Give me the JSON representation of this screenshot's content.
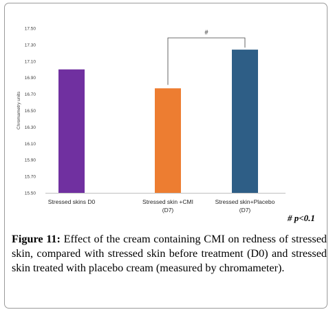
{
  "chart_data": {
    "type": "bar",
    "categories": [
      [
        "Stressed skins D0"
      ],
      [
        "Stressed skin +CMI",
        "(D7)"
      ],
      [
        "Stressed skin+Placebo",
        "(D7)"
      ]
    ],
    "values": [
      17.0,
      16.77,
      17.24
    ],
    "colors": [
      "#7030a0",
      "#ed7d31",
      "#2e5e86"
    ],
    "ylabel": "Chromametry units",
    "ylim": [
      15.5,
      17.5
    ],
    "yticks": [
      "15.50",
      "15.70",
      "15.90",
      "16.10",
      "16.30",
      "16.50",
      "16.70",
      "16.90",
      "17.10",
      "17.30",
      "17.50"
    ],
    "grid": false,
    "annotation": {
      "symbol": "#",
      "between": [
        1,
        2
      ]
    }
  },
  "significance_note": "# p<0.1",
  "caption": {
    "label": "Figure 11:",
    "text": " Effect of the cream containing CMI on redness of stressed skin, compared with stressed skin before treatment (D0) and stressed skin treated with placebo cream (measured by chromameter)."
  }
}
